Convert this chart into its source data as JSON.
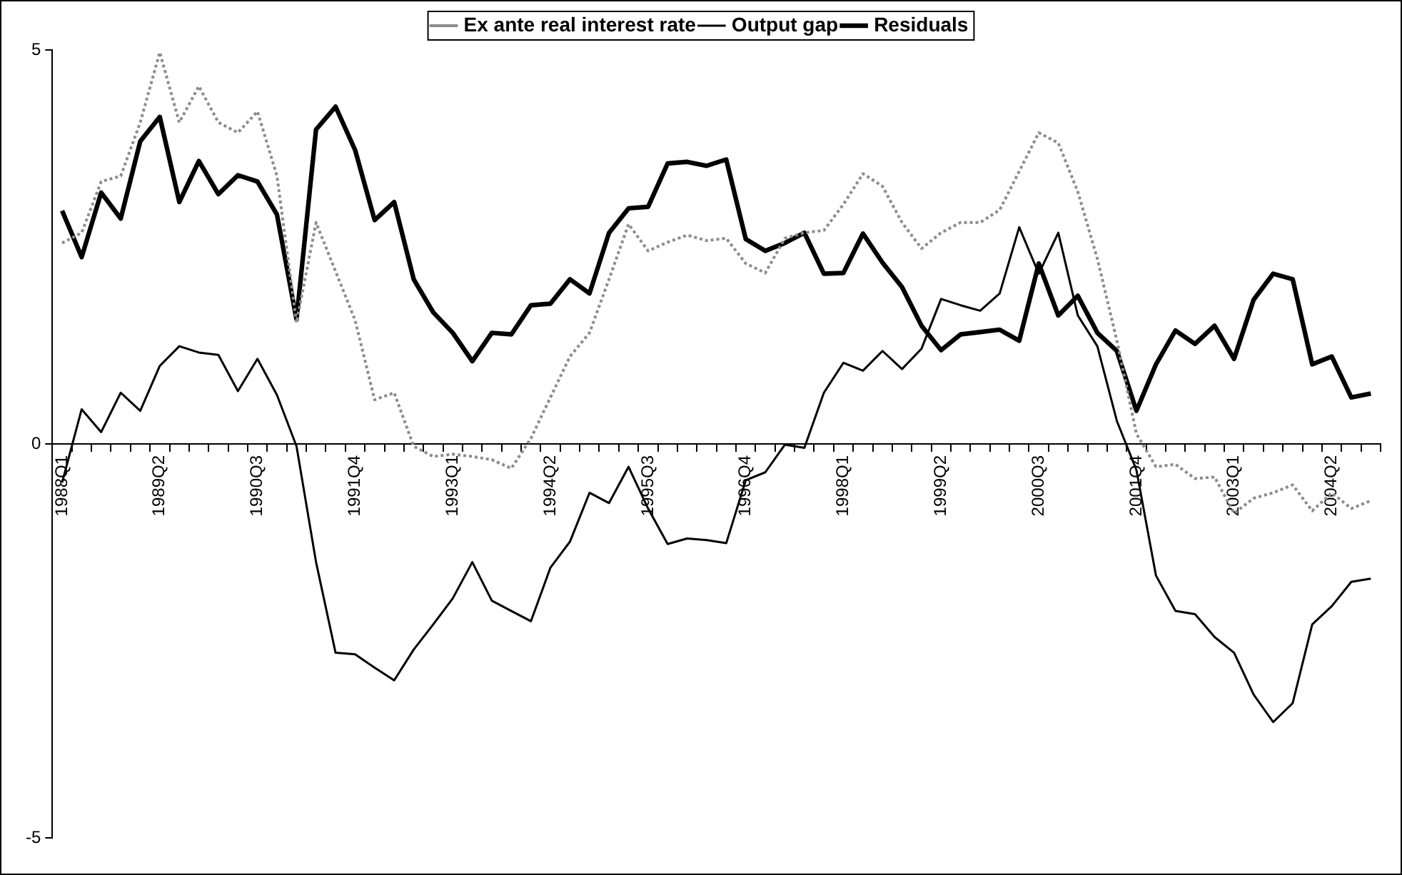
{
  "chart_data": {
    "type": "line",
    "categories": [
      "1988Q1",
      null,
      null,
      null,
      null,
      "1989Q2",
      null,
      null,
      null,
      null,
      "1990Q3",
      null,
      null,
      null,
      null,
      "1991Q4",
      null,
      null,
      null,
      null,
      "1993Q1",
      null,
      null,
      null,
      null,
      "1994Q2",
      null,
      null,
      null,
      null,
      "1995Q3",
      null,
      null,
      null,
      null,
      "1996Q4",
      null,
      null,
      null,
      null,
      "1998Q1",
      null,
      null,
      null,
      null,
      "1999Q2",
      null,
      null,
      null,
      null,
      "2000Q3",
      null,
      null,
      null,
      null,
      "2001Q4",
      null,
      null,
      null,
      null,
      "2003Q1",
      null,
      null,
      null,
      null,
      "2004Q2",
      null,
      null
    ],
    "series": [
      {
        "name": "Ex ante real interest rate",
        "color": "#8c8c8c",
        "line_style": "dotted",
        "values": [
          2.55,
          2.68,
          3.33,
          3.4,
          4.08,
          4.97,
          4.08,
          4.54,
          4.08,
          3.95,
          4.22,
          3.4,
          1.54,
          2.81,
          2.19,
          1.57,
          0.56,
          0.65,
          -0.03,
          -0.16,
          -0.13,
          -0.16,
          -0.2,
          -0.31,
          0.07,
          0.59,
          1.11,
          1.41,
          2.09,
          2.79,
          2.45,
          2.56,
          2.65,
          2.58,
          2.61,
          2.29,
          2.17,
          2.61,
          2.68,
          2.71,
          3.04,
          3.43,
          3.27,
          2.81,
          2.48,
          2.68,
          2.81,
          2.81,
          2.97,
          3.46,
          3.95,
          3.82,
          3.2,
          2.35,
          1.31,
          0.13,
          -0.29,
          -0.26,
          -0.44,
          -0.42,
          -0.88,
          -0.69,
          -0.62,
          -0.52,
          -0.85,
          -0.62,
          -0.82,
          -0.72
        ]
      },
      {
        "name": "Output gap",
        "color": "#000000",
        "line_style": "solid",
        "values": [
          -0.49,
          0.44,
          0.15,
          0.65,
          0.42,
          0.99,
          1.24,
          1.16,
          1.13,
          0.67,
          1.08,
          0.62,
          -0.03,
          -1.5,
          -2.65,
          -2.67,
          -2.84,
          -3.0,
          -2.61,
          -2.29,
          -1.96,
          -1.5,
          -1.99,
          -2.12,
          -2.25,
          -1.57,
          -1.24,
          -0.62,
          -0.75,
          -0.29,
          -0.82,
          -1.27,
          -1.2,
          -1.22,
          -1.26,
          -0.46,
          -0.36,
          -0.01,
          -0.05,
          0.65,
          1.03,
          0.93,
          1.18,
          0.95,
          1.21,
          1.84,
          1.76,
          1.69,
          1.91,
          2.75,
          2.16,
          2.68,
          1.63,
          1.24,
          0.29,
          -0.33,
          -1.67,
          -2.12,
          -2.16,
          -2.45,
          -2.65,
          -3.18,
          -3.53,
          -3.29,
          -2.29,
          -2.06,
          -1.75,
          -1.71
        ]
      },
      {
        "name": "Residuals",
        "color": "#000000",
        "line_style": "solid",
        "values": [
          2.96,
          2.37,
          3.19,
          2.86,
          3.84,
          4.15,
          3.07,
          3.59,
          3.17,
          3.41,
          3.33,
          2.91,
          1.58,
          3.99,
          4.28,
          3.73,
          2.84,
          3.07,
          2.09,
          1.67,
          1.41,
          1.05,
          1.41,
          1.39,
          1.76,
          1.78,
          2.09,
          1.91,
          2.68,
          2.99,
          3.01,
          3.56,
          3.58,
          3.53,
          3.61,
          2.6,
          2.45,
          2.55,
          2.68,
          2.16,
          2.17,
          2.67,
          2.3,
          1.99,
          1.5,
          1.19,
          1.39,
          1.42,
          1.45,
          1.31,
          2.29,
          1.63,
          1.88,
          1.41,
          1.18,
          0.42,
          1.01,
          1.44,
          1.27,
          1.5,
          1.08,
          1.83,
          2.16,
          2.09,
          1.01,
          1.11,
          0.59,
          0.64
        ]
      }
    ],
    "ylim": [
      -5,
      5
    ],
    "yticks": [
      5,
      0,
      -5
    ],
    "grid": false,
    "legend": "top",
    "marker": "none"
  }
}
